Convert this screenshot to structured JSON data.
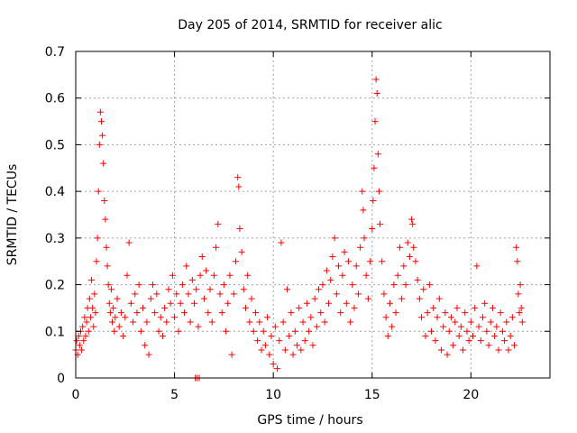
{
  "chart_data": {
    "type": "scatter",
    "title": "Day 205 of 2014, SRMTID for receiver alic",
    "xlabel": "GPS time / hours",
    "ylabel": "SRMTID / TECUs",
    "xlim": [
      0,
      24
    ],
    "ylim": [
      0,
      0.7
    ],
    "xticks": [
      0,
      5,
      10,
      15,
      20
    ],
    "yticks": [
      0,
      0.1,
      0.2,
      0.3,
      0.4,
      0.5,
      0.6,
      0.7
    ],
    "xtick_labels": [
      "0",
      "5",
      "10",
      "15",
      "20"
    ],
    "ytick_labels": [
      "0",
      "0.1",
      "0.2",
      "0.3",
      "0.4",
      "0.5",
      "0.6",
      "0.7"
    ],
    "grid": true,
    "marker": "+",
    "marker_color": "#ff0000",
    "series": [
      {
        "name": "SRMTID",
        "points": [
          [
            0.0,
            0.06
          ],
          [
            0.05,
            0.08
          ],
          [
            0.1,
            0.05
          ],
          [
            0.15,
            0.09
          ],
          [
            0.2,
            0.07
          ],
          [
            0.25,
            0.1
          ],
          [
            0.3,
            0.06
          ],
          [
            0.35,
            0.11
          ],
          [
            0.4,
            0.08
          ],
          [
            0.45,
            0.13
          ],
          [
            0.5,
            0.09
          ],
          [
            0.55,
            0.12
          ],
          [
            0.6,
            0.15
          ],
          [
            0.65,
            0.1
          ],
          [
            0.7,
            0.17
          ],
          [
            0.75,
            0.13
          ],
          [
            0.8,
            0.21
          ],
          [
            0.85,
            0.15
          ],
          [
            0.9,
            0.11
          ],
          [
            0.95,
            0.18
          ],
          [
            1.0,
            0.14
          ],
          [
            1.05,
            0.25
          ],
          [
            1.1,
            0.3
          ],
          [
            1.15,
            0.4
          ],
          [
            1.2,
            0.5
          ],
          [
            1.25,
            0.57
          ],
          [
            1.3,
            0.55
          ],
          [
            1.35,
            0.52
          ],
          [
            1.4,
            0.46
          ],
          [
            1.45,
            0.38
          ],
          [
            1.5,
            0.34
          ],
          [
            1.55,
            0.28
          ],
          [
            1.6,
            0.24
          ],
          [
            1.65,
            0.2
          ],
          [
            1.7,
            0.16
          ],
          [
            1.75,
            0.14
          ],
          [
            1.8,
            0.19
          ],
          [
            1.85,
            0.12
          ],
          [
            1.9,
            0.15
          ],
          [
            1.95,
            0.1
          ],
          [
            2.0,
            0.13
          ],
          [
            2.1,
            0.17
          ],
          [
            2.2,
            0.11
          ],
          [
            2.3,
            0.14
          ],
          [
            2.4,
            0.09
          ],
          [
            2.5,
            0.13
          ],
          [
            2.6,
            0.22
          ],
          [
            2.7,
            0.29
          ],
          [
            2.8,
            0.16
          ],
          [
            2.9,
            0.12
          ],
          [
            3.0,
            0.18
          ],
          [
            3.1,
            0.14
          ],
          [
            3.2,
            0.2
          ],
          [
            3.3,
            0.1
          ],
          [
            3.4,
            0.15
          ],
          [
            3.5,
            0.07
          ],
          [
            3.6,
            0.12
          ],
          [
            3.7,
            0.05
          ],
          [
            3.8,
            0.17
          ],
          [
            3.9,
            0.2
          ],
          [
            4.0,
            0.14
          ],
          [
            4.1,
            0.18
          ],
          [
            4.2,
            0.1
          ],
          [
            4.3,
            0.13
          ],
          [
            4.4,
            0.09
          ],
          [
            4.5,
            0.15
          ],
          [
            4.6,
            0.12
          ],
          [
            4.7,
            0.19
          ],
          [
            4.8,
            0.16
          ],
          [
            4.9,
            0.22
          ],
          [
            5.0,
            0.13
          ],
          [
            5.1,
            0.18
          ],
          [
            5.2,
            0.1
          ],
          [
            5.3,
            0.16
          ],
          [
            5.4,
            0.2
          ],
          [
            5.5,
            0.14
          ],
          [
            5.6,
            0.24
          ],
          [
            5.7,
            0.18
          ],
          [
            5.8,
            0.12
          ],
          [
            5.9,
            0.21
          ],
          [
            6.0,
            0.16
          ],
          [
            6.05,
            0.0
          ],
          [
            6.1,
            0.19
          ],
          [
            6.15,
            0.0
          ],
          [
            6.2,
            0.11
          ],
          [
            6.25,
            0.0
          ],
          [
            6.3,
            0.22
          ],
          [
            6.4,
            0.26
          ],
          [
            6.5,
            0.17
          ],
          [
            6.6,
            0.23
          ],
          [
            6.7,
            0.14
          ],
          [
            6.8,
            0.19
          ],
          [
            6.9,
            0.12
          ],
          [
            7.0,
            0.22
          ],
          [
            7.1,
            0.28
          ],
          [
            7.2,
            0.33
          ],
          [
            7.3,
            0.18
          ],
          [
            7.4,
            0.14
          ],
          [
            7.5,
            0.2
          ],
          [
            7.6,
            0.1
          ],
          [
            7.7,
            0.16
          ],
          [
            7.8,
            0.22
          ],
          [
            7.9,
            0.05
          ],
          [
            8.0,
            0.18
          ],
          [
            8.1,
            0.25
          ],
          [
            8.2,
            0.43
          ],
          [
            8.25,
            0.41
          ],
          [
            8.3,
            0.32
          ],
          [
            8.4,
            0.27
          ],
          [
            8.5,
            0.19
          ],
          [
            8.6,
            0.15
          ],
          [
            8.7,
            0.22
          ],
          [
            8.8,
            0.12
          ],
          [
            8.9,
            0.17
          ],
          [
            9.0,
            0.1
          ],
          [
            9.1,
            0.14
          ],
          [
            9.2,
            0.08
          ],
          [
            9.3,
            0.12
          ],
          [
            9.4,
            0.06
          ],
          [
            9.5,
            0.1
          ],
          [
            9.6,
            0.07
          ],
          [
            9.7,
            0.13
          ],
          [
            9.8,
            0.05
          ],
          [
            9.9,
            0.09
          ],
          [
            10.0,
            0.03
          ],
          [
            10.1,
            0.11
          ],
          [
            10.2,
            0.02
          ],
          [
            10.3,
            0.08
          ],
          [
            10.4,
            0.29
          ],
          [
            10.5,
            0.12
          ],
          [
            10.6,
            0.06
          ],
          [
            10.7,
            0.19
          ],
          [
            10.8,
            0.09
          ],
          [
            10.9,
            0.14
          ],
          [
            11.0,
            0.05
          ],
          [
            11.1,
            0.1
          ],
          [
            11.2,
            0.07
          ],
          [
            11.3,
            0.15
          ],
          [
            11.4,
            0.06
          ],
          [
            11.5,
            0.12
          ],
          [
            11.6,
            0.08
          ],
          [
            11.7,
            0.16
          ],
          [
            11.8,
            0.1
          ],
          [
            11.9,
            0.13
          ],
          [
            12.0,
            0.07
          ],
          [
            12.1,
            0.17
          ],
          [
            12.2,
            0.11
          ],
          [
            12.3,
            0.19
          ],
          [
            12.4,
            0.14
          ],
          [
            12.5,
            0.2
          ],
          [
            12.6,
            0.12
          ],
          [
            12.7,
            0.23
          ],
          [
            12.8,
            0.16
          ],
          [
            12.9,
            0.21
          ],
          [
            13.0,
            0.26
          ],
          [
            13.1,
            0.3
          ],
          [
            13.2,
            0.18
          ],
          [
            13.3,
            0.24
          ],
          [
            13.4,
            0.14
          ],
          [
            13.5,
            0.22
          ],
          [
            13.6,
            0.27
          ],
          [
            13.7,
            0.16
          ],
          [
            13.8,
            0.25
          ],
          [
            13.9,
            0.12
          ],
          [
            14.0,
            0.2
          ],
          [
            14.1,
            0.15
          ],
          [
            14.2,
            0.24
          ],
          [
            14.3,
            0.18
          ],
          [
            14.4,
            0.28
          ],
          [
            14.5,
            0.4
          ],
          [
            14.55,
            0.36
          ],
          [
            14.6,
            0.3
          ],
          [
            14.7,
            0.22
          ],
          [
            14.8,
            0.17
          ],
          [
            14.9,
            0.25
          ],
          [
            15.0,
            0.32
          ],
          [
            15.05,
            0.38
          ],
          [
            15.1,
            0.45
          ],
          [
            15.15,
            0.55
          ],
          [
            15.2,
            0.64
          ],
          [
            15.25,
            0.61
          ],
          [
            15.3,
            0.48
          ],
          [
            15.35,
            0.4
          ],
          [
            15.4,
            0.33
          ],
          [
            15.5,
            0.25
          ],
          [
            15.6,
            0.18
          ],
          [
            15.7,
            0.13
          ],
          [
            15.8,
            0.09
          ],
          [
            15.9,
            0.16
          ],
          [
            16.0,
            0.11
          ],
          [
            16.1,
            0.2
          ],
          [
            16.2,
            0.14
          ],
          [
            16.3,
            0.22
          ],
          [
            16.4,
            0.28
          ],
          [
            16.5,
            0.17
          ],
          [
            16.6,
            0.24
          ],
          [
            16.7,
            0.2
          ],
          [
            16.8,
            0.29
          ],
          [
            16.9,
            0.26
          ],
          [
            17.0,
            0.34
          ],
          [
            17.05,
            0.33
          ],
          [
            17.1,
            0.28
          ],
          [
            17.2,
            0.25
          ],
          [
            17.3,
            0.21
          ],
          [
            17.4,
            0.17
          ],
          [
            17.5,
            0.13
          ],
          [
            17.6,
            0.19
          ],
          [
            17.7,
            0.09
          ],
          [
            17.8,
            0.14
          ],
          [
            17.9,
            0.2
          ],
          [
            18.0,
            0.1
          ],
          [
            18.1,
            0.15
          ],
          [
            18.2,
            0.08
          ],
          [
            18.3,
            0.13
          ],
          [
            18.4,
            0.17
          ],
          [
            18.5,
            0.06
          ],
          [
            18.6,
            0.11
          ],
          [
            18.7,
            0.14
          ],
          [
            18.8,
            0.05
          ],
          [
            18.9,
            0.1
          ],
          [
            19.0,
            0.13
          ],
          [
            19.1,
            0.07
          ],
          [
            19.2,
            0.12
          ],
          [
            19.3,
            0.15
          ],
          [
            19.4,
            0.09
          ],
          [
            19.5,
            0.11
          ],
          [
            19.6,
            0.06
          ],
          [
            19.7,
            0.14
          ],
          [
            19.8,
            0.1
          ],
          [
            19.9,
            0.08
          ],
          [
            20.0,
            0.12
          ],
          [
            20.1,
            0.09
          ],
          [
            20.2,
            0.15
          ],
          [
            20.3,
            0.24
          ],
          [
            20.4,
            0.11
          ],
          [
            20.5,
            0.08
          ],
          [
            20.6,
            0.13
          ],
          [
            20.7,
            0.16
          ],
          [
            20.8,
            0.1
          ],
          [
            20.9,
            0.07
          ],
          [
            21.0,
            0.12
          ],
          [
            21.1,
            0.15
          ],
          [
            21.2,
            0.09
          ],
          [
            21.3,
            0.11
          ],
          [
            21.4,
            0.06
          ],
          [
            21.5,
            0.14
          ],
          [
            21.6,
            0.1
          ],
          [
            21.7,
            0.08
          ],
          [
            21.8,
            0.12
          ],
          [
            21.9,
            0.06
          ],
          [
            22.0,
            0.09
          ],
          [
            22.1,
            0.13
          ],
          [
            22.2,
            0.07
          ],
          [
            22.3,
            0.28
          ],
          [
            22.35,
            0.25
          ],
          [
            22.4,
            0.18
          ],
          [
            22.45,
            0.14
          ],
          [
            22.5,
            0.2
          ],
          [
            22.55,
            0.15
          ],
          [
            22.6,
            0.12
          ]
        ]
      }
    ]
  }
}
